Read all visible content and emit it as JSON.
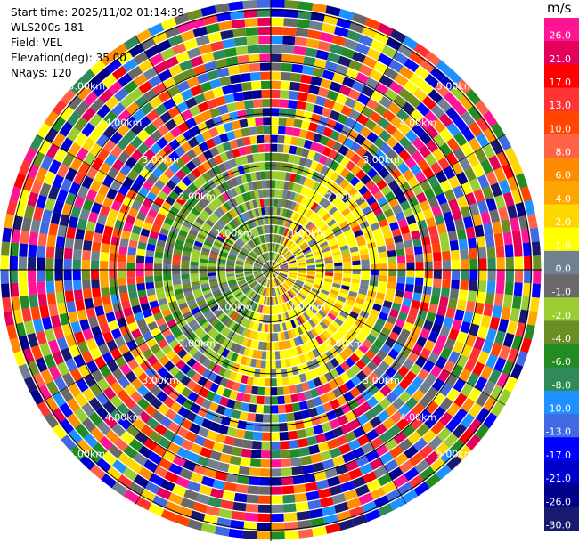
{
  "header": {
    "start_time": "Start time: 2025/11/02 01:14:39",
    "instrument": "WLS200s-181",
    "field": "Field: VEL",
    "elevation": "Elevation(deg): 35.00",
    "nrays": "NRays: 120"
  },
  "chart_data": {
    "type": "heatmap",
    "projection": "polar-ppi",
    "rays": 120,
    "range_rings": [
      "1.00km",
      "2.00km",
      "3.00km",
      "4.00km",
      "5.00km"
    ],
    "colorbar": {
      "unit": "m/s",
      "ticks": [
        "26.0",
        "21.0",
        "17.0",
        "13.0",
        "10.0",
        "8.0",
        "6.0",
        "4.0",
        "2.0",
        "1.0",
        "0.0",
        "-1.0",
        "-2.0",
        "-4.0",
        "-6.0",
        "-8.0",
        "-10.0",
        "-13.0",
        "-17.0",
        "-21.0",
        "-26.0",
        "-30.0"
      ],
      "colors": [
        "#ff1493",
        "#e3005a",
        "#ff0000",
        "#ff3333",
        "#ff4500",
        "#ff6347",
        "#ff8c00",
        "#ffa500",
        "#ffd700",
        "#ffff00",
        "#708090",
        "#696969",
        "#9acd32",
        "#6b8e23",
        "#228b22",
        "#2e8b57",
        "#1e90ff",
        "#4169e1",
        "#0000ff",
        "#0000cd",
        "#00008b",
        "#191970"
      ]
    }
  }
}
